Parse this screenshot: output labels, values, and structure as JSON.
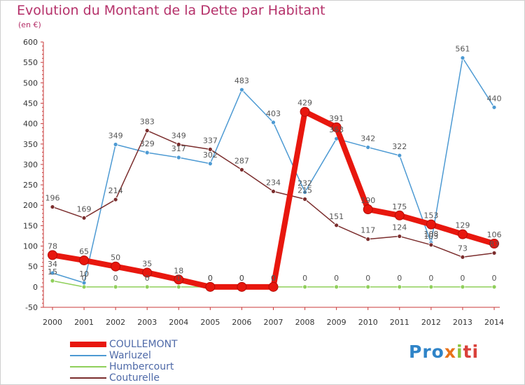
{
  "chart_data": {
    "type": "line",
    "title": "Evolution du Montant de la Dette par Habitant",
    "subtitle": "(en €)",
    "x": [
      "2000",
      "2001",
      "2002",
      "2003",
      "2004",
      "2005",
      "2006",
      "2007",
      "2008",
      "2009",
      "2010",
      "2011",
      "2012",
      "2013",
      "2014"
    ],
    "ylim": [
      -50,
      600
    ],
    "yticks": [
      -50,
      0,
      50,
      100,
      150,
      200,
      250,
      300,
      350,
      400,
      450,
      500,
      550,
      600
    ],
    "grid": false,
    "legend_position": "bottom-left",
    "series": [
      {
        "name": "COULLEMONT",
        "color": "#e8170e",
        "values": [
          78,
          65,
          50,
          35,
          18,
          0,
          0,
          0,
          429,
          391,
          190,
          175,
          153,
          129,
          106
        ]
      },
      {
        "name": "Warluzel",
        "color": "#4d9ad3",
        "values": [
          34,
          10,
          349,
          329,
          317,
          302,
          483,
          403,
          232,
          363,
          342,
          322,
          108,
          561,
          440
        ]
      },
      {
        "name": "Humbercourt",
        "color": "#8fcf5a",
        "values": [
          15,
          0,
          0,
          0,
          0,
          0,
          0,
          0,
          0,
          0,
          0,
          0,
          0,
          0,
          0
        ]
      },
      {
        "name": "Couturelle",
        "color": "#7b2d2d",
        "values": [
          196,
          169,
          214,
          383,
          349,
          337,
          287,
          234,
          215,
          151,
          117,
          124,
          103,
          73,
          83
        ]
      }
    ],
    "data_labels": [
      [
        "78",
        "65",
        "50",
        "35",
        "18",
        "0",
        "0",
        "0",
        "429",
        "391",
        "190",
        "175",
        "153",
        "129",
        "106"
      ],
      [
        "34",
        "10",
        "349",
        "329",
        "317",
        "302",
        "483",
        "403",
        "232",
        "363",
        "342",
        "322",
        "108",
        "561",
        "440"
      ],
      [
        "15",
        "0",
        "0",
        "0",
        "0",
        "0",
        "0",
        "0",
        "0",
        "0",
        "0",
        "0",
        "0",
        "0",
        "0"
      ],
      [
        "196",
        "169",
        "214",
        "383",
        "349",
        "337",
        "287",
        "234",
        "215",
        "151",
        "117",
        "124",
        "103",
        "73",
        "83"
      ]
    ]
  },
  "logo": {
    "p1": "Pro",
    "p2": "x",
    "p3": "i",
    "p4": "ti"
  }
}
